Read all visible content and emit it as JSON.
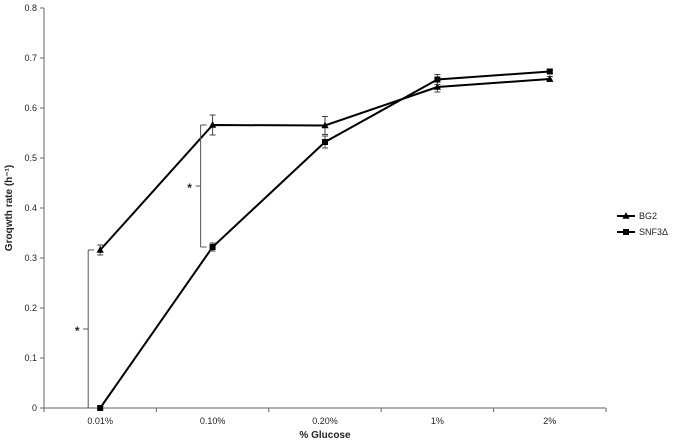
{
  "chart_data": {
    "type": "line",
    "title": "",
    "xlabel": "% Glucose",
    "ylabel": "Groqwth rate (h⁻¹)",
    "categories": [
      "0.01%",
      "0.10%",
      "0.20%",
      "1%",
      "2%"
    ],
    "ylim": [
      0,
      0.8
    ],
    "yticks": [
      0,
      0.1,
      0.2,
      0.3,
      0.4,
      0.5,
      0.6,
      0.7,
      0.8
    ],
    "ytick_labels": [
      "0",
      "0.1",
      "0.2",
      "0.3",
      "0.4",
      "0.5",
      "0.6",
      "0.7",
      "0.8"
    ],
    "grid": false,
    "legend_position": "right",
    "series": [
      {
        "name": "BG2",
        "marker": "triangle",
        "values": [
          0.316,
          0.566,
          0.565,
          0.642,
          0.658
        ],
        "errors": [
          0.01,
          0.02,
          0.018,
          0.01,
          0.005
        ]
      },
      {
        "name": "SNF3Δ",
        "marker": "square",
        "values": [
          0.0,
          0.322,
          0.532,
          0.657,
          0.673
        ],
        "errors": [
          0.003,
          0.008,
          0.012,
          0.01,
          0.004
        ]
      }
    ],
    "annotations": [
      {
        "label": "*",
        "category": "0.01%",
        "from": 0.0,
        "to": 0.316
      },
      {
        "label": "*",
        "category": "0.10%",
        "from": 0.322,
        "to": 0.566
      }
    ]
  }
}
